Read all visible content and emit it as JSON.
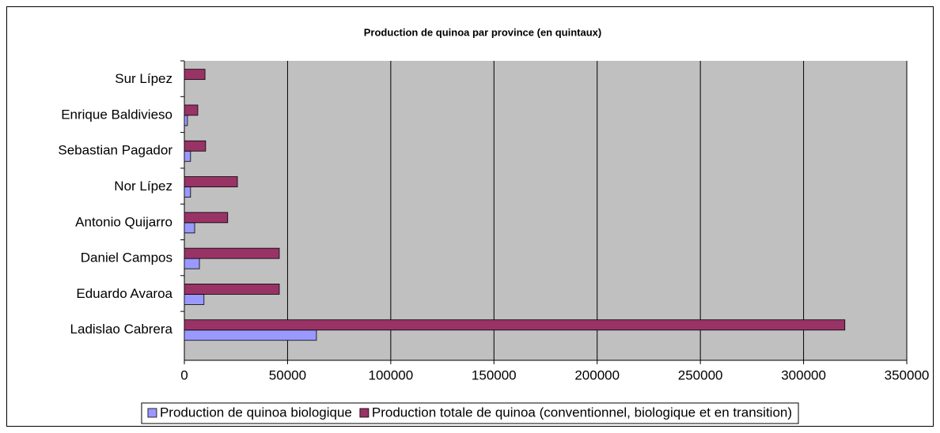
{
  "chart_data": {
    "type": "barh",
    "title": "Production de quinoa par province (en quintaux)",
    "categories": [
      "Ladislao Cabrera",
      "Eduardo Avaroa",
      "Daniel Campos",
      "Antonio Quijarro",
      "Nor Lípez",
      "Sebastian Pagador",
      "Enrique Baldivieso",
      "Sur Lípez"
    ],
    "series": [
      {
        "name": "Production de quinoa biologique",
        "color": "#9999ff",
        "values": [
          64000,
          9500,
          7300,
          5000,
          3000,
          3000,
          1500,
          0
        ]
      },
      {
        "name": "Production totale de quinoa (conventionnel, biologique et en transition)",
        "color": "#993366",
        "values": [
          320000,
          46000,
          46000,
          21000,
          25700,
          10300,
          6500,
          10000
        ]
      }
    ],
    "xlim": [
      0,
      350000
    ],
    "xticks": [
      0,
      50000,
      100000,
      150000,
      200000,
      250000,
      300000,
      350000
    ],
    "grid": true,
    "legend": "bottom"
  }
}
